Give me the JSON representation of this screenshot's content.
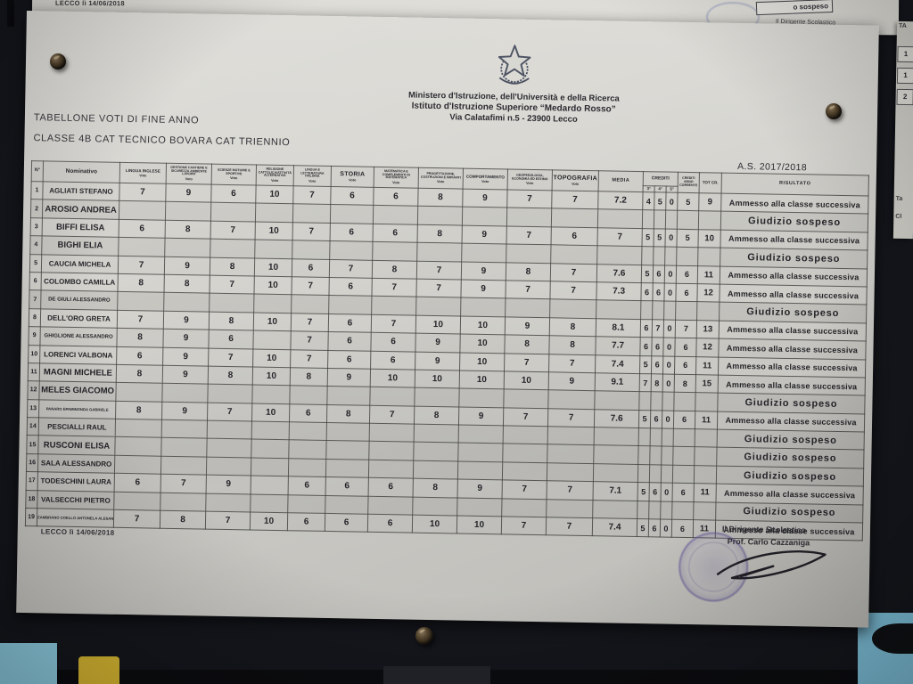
{
  "behind_sheet": {
    "date": "LECCO lì 14/06/2018",
    "sospeso_fragment": "o sospeso",
    "dirigente_fragment": "Il Dirigente Scolastico"
  },
  "side_sheet": {
    "top_fragment": "TA",
    "cells": [
      "1",
      "1",
      "2"
    ],
    "lower_fragments": [
      "Ta",
      "Cl"
    ]
  },
  "header": {
    "ministry": "Ministero d'Istruzione, dell'Università e della Ricerca",
    "institute": "Istituto d'Istruzione Superiore “Medardo Rosso”",
    "address": "Via Calatafimi n.5 -  23900 Lecco"
  },
  "titles": {
    "line1": "TABELLONE VOTI DI FINE ANNO",
    "line2": "CLASSE 4B CAT TECNICO BOVARA CAT TRIENNIO",
    "school_year": "A.S. 2017/2018"
  },
  "table": {
    "headers": {
      "num": "N°",
      "name": "Nominativo",
      "media": "MEDIA",
      "crediti": "CREDITI",
      "crediti_anno": "CREDITI ANNO CORRENTE",
      "tot": "TOT CR.",
      "risultato": "RISULTATO"
    },
    "voto_label": "Voto",
    "credit_subcols": [
      "3°",
      "4°",
      "5°"
    ],
    "subjects": [
      "LINGUA INGLESE",
      "GESTIONE CANTIERE E SICUREZZA AMBIENTE LAVORO",
      "SCIENZE MOTORIE E SPORTIVE",
      "RELIGIONE CATTOLICA/ATTIVITÀ ALTERNATIVA",
      "LINGUA E LETTERATURA ITALIANA",
      "STORIA",
      "MATEMATICA E COMPLEMENTI DI MATEMATICA",
      "PROGETTAZIONE, COSTRUZIONI E IMPIANTI",
      "COMPORTAMENTO",
      "GEOPEDOLOGIA, ECONOMIA ED ESTIMO",
      "TOPOGRAFIA"
    ],
    "sospeso_text": "Giudizio sospeso",
    "rows": [
      {
        "n": "1",
        "name": "AGLIATI STEFANO",
        "votes": [
          "7",
          "9",
          "6",
          "10",
          "7",
          "6",
          "6",
          "8",
          "9",
          "7",
          "7"
        ],
        "media": "7.2",
        "crediti": [
          "4",
          "5",
          "0"
        ],
        "credito_anno": "5",
        "tot": "9",
        "risultato": "Ammesso alla classe successiva"
      },
      {
        "n": "2",
        "name": "AROSIO ANDREA",
        "votes": [
          "",
          "",
          "",
          "",
          "",
          "",
          "",
          "",
          "",
          "",
          ""
        ],
        "media": "",
        "crediti": [
          "",
          "",
          ""
        ],
        "credito_anno": "",
        "tot": "",
        "risultato": "Giudizio sospeso"
      },
      {
        "n": "3",
        "name": "BIFFI ELISA",
        "votes": [
          "6",
          "8",
          "7",
          "10",
          "7",
          "6",
          "6",
          "8",
          "9",
          "7",
          "6"
        ],
        "media": "7",
        "crediti": [
          "5",
          "5",
          "0"
        ],
        "credito_anno": "5",
        "tot": "10",
        "risultato": "Ammesso alla classe successiva"
      },
      {
        "n": "4",
        "name": "BIGHI ELIA",
        "votes": [
          "",
          "",
          "",
          "",
          "",
          "",
          "",
          "",
          "",
          "",
          ""
        ],
        "media": "",
        "crediti": [
          "",
          "",
          ""
        ],
        "credito_anno": "",
        "tot": "",
        "risultato": "Giudizio sospeso"
      },
      {
        "n": "5",
        "name": "CAUCIA MICHELA",
        "votes": [
          "7",
          "9",
          "8",
          "10",
          "6",
          "7",
          "8",
          "7",
          "9",
          "8",
          "7"
        ],
        "media": "7.6",
        "crediti": [
          "5",
          "6",
          "0"
        ],
        "credito_anno": "6",
        "tot": "11",
        "risultato": "Ammesso alla classe successiva"
      },
      {
        "n": "6",
        "name": "COLOMBO CAMILLA",
        "votes": [
          "8",
          "8",
          "7",
          "10",
          "7",
          "6",
          "7",
          "7",
          "9",
          "7",
          "7"
        ],
        "media": "7.3",
        "crediti": [
          "6",
          "6",
          "0"
        ],
        "credito_anno": "6",
        "tot": "12",
        "risultato": "Ammesso alla classe successiva"
      },
      {
        "n": "7",
        "name": "DE GIULI ALESSANDRO",
        "votes": [
          "",
          "",
          "",
          "",
          "",
          "",
          "",
          "",
          "",
          "",
          ""
        ],
        "media": "",
        "crediti": [
          "",
          "",
          ""
        ],
        "credito_anno": "",
        "tot": "",
        "risultato": "Giudizio sospeso"
      },
      {
        "n": "8",
        "name": "DELL'ORO GRETA",
        "votes": [
          "7",
          "9",
          "8",
          "10",
          "7",
          "6",
          "7",
          "10",
          "10",
          "9",
          "8"
        ],
        "media": "8.1",
        "crediti": [
          "6",
          "7",
          "0"
        ],
        "credito_anno": "7",
        "tot": "13",
        "risultato": "Ammesso alla classe successiva"
      },
      {
        "n": "9",
        "name": "GHIGLIONE ALESSANDRO",
        "votes": [
          "8",
          "9",
          "6",
          "",
          "7",
          "6",
          "6",
          "9",
          "10",
          "8",
          "8"
        ],
        "media": "7.7",
        "crediti": [
          "6",
          "6",
          "0"
        ],
        "credito_anno": "6",
        "tot": "12",
        "risultato": "Ammesso alla classe successiva"
      },
      {
        "n": "10",
        "name": "LORENCI VALBONA",
        "votes": [
          "6",
          "9",
          "7",
          "10",
          "7",
          "6",
          "6",
          "9",
          "10",
          "7",
          "7"
        ],
        "media": "7.4",
        "crediti": [
          "5",
          "6",
          "0"
        ],
        "credito_anno": "6",
        "tot": "11",
        "risultato": "Ammesso alla classe successiva"
      },
      {
        "n": "11",
        "name": "MAGNI MICHELE",
        "votes": [
          "8",
          "9",
          "8",
          "10",
          "8",
          "9",
          "10",
          "10",
          "10",
          "10",
          "9"
        ],
        "media": "9.1",
        "crediti": [
          "7",
          "8",
          "0"
        ],
        "credito_anno": "8",
        "tot": "15",
        "risultato": "Ammesso alla classe successiva"
      },
      {
        "n": "12",
        "name": "MELES GIACOMO",
        "votes": [
          "",
          "",
          "",
          "",
          "",
          "",
          "",
          "",
          "",
          "",
          ""
        ],
        "media": "",
        "crediti": [
          "",
          "",
          ""
        ],
        "credito_anno": "",
        "tot": "",
        "risultato": "Giudizio sospeso"
      },
      {
        "n": "13",
        "name": "PANARO EPAMINONDA GABRIELE",
        "votes": [
          "8",
          "9",
          "7",
          "10",
          "6",
          "8",
          "7",
          "8",
          "9",
          "7",
          "7"
        ],
        "media": "7.6",
        "crediti": [
          "5",
          "6",
          "0"
        ],
        "credito_anno": "6",
        "tot": "11",
        "risultato": "Ammesso alla classe successiva"
      },
      {
        "n": "14",
        "name": "PESCIALLI RAUL",
        "votes": [
          "",
          "",
          "",
          "",
          "",
          "",
          "",
          "",
          "",
          "",
          ""
        ],
        "media": "",
        "crediti": [
          "",
          "",
          ""
        ],
        "credito_anno": "",
        "tot": "",
        "risultato": "Giudizio sospeso"
      },
      {
        "n": "15",
        "name": "RUSCONI ELISA",
        "votes": [
          "",
          "",
          "",
          "",
          "",
          "",
          "",
          "",
          "",
          "",
          ""
        ],
        "media": "",
        "crediti": [
          "",
          "",
          ""
        ],
        "credito_anno": "",
        "tot": "",
        "risultato": "Giudizio sospeso"
      },
      {
        "n": "16",
        "name": "SALA ALESSANDRO",
        "votes": [
          "",
          "",
          "",
          "",
          "",
          "",
          "",
          "",
          "",
          "",
          ""
        ],
        "media": "",
        "crediti": [
          "",
          "",
          ""
        ],
        "credito_anno": "",
        "tot": "",
        "risultato": "Giudizio sospeso"
      },
      {
        "n": "17",
        "name": "TODESCHINI LAURA",
        "votes": [
          "6",
          "7",
          "9",
          "",
          "6",
          "6",
          "6",
          "8",
          "9",
          "7",
          "7"
        ],
        "media": "7.1",
        "crediti": [
          "5",
          "6",
          "0"
        ],
        "credito_anno": "6",
        "tot": "11",
        "risultato": "Ammesso alla classe successiva"
      },
      {
        "n": "18",
        "name": "VALSECCHI PIETRO",
        "votes": [
          "",
          "",
          "",
          "",
          "",
          "",
          "",
          "",
          "",
          "",
          ""
        ],
        "media": "",
        "crediti": [
          "",
          "",
          ""
        ],
        "credito_anno": "",
        "tot": "",
        "risultato": "Giudizio sospeso"
      },
      {
        "n": "19",
        "name": "ZAMBRANO COELLO ANTONELA ALESANDRA",
        "votes": [
          "7",
          "8",
          "7",
          "10",
          "6",
          "6",
          "6",
          "10",
          "10",
          "7",
          "7"
        ],
        "media": "7.4",
        "crediti": [
          "5",
          "6",
          "0"
        ],
        "credito_anno": "6",
        "tot": "11",
        "risultato": "Ammesso alla classe successiva"
      }
    ]
  },
  "footer": {
    "date": "LECCO lì 14/06/2018",
    "dirigente_label": "Il Dirigente Scolastico",
    "dirigente_name": "Prof. Carlo Cazzaniga"
  },
  "colors": {
    "stamp_ink": "#685ca0",
    "paper": "#d8d7d2",
    "wall_blue": "#8ecfe4",
    "wall_yellow": "#d9b832"
  }
}
